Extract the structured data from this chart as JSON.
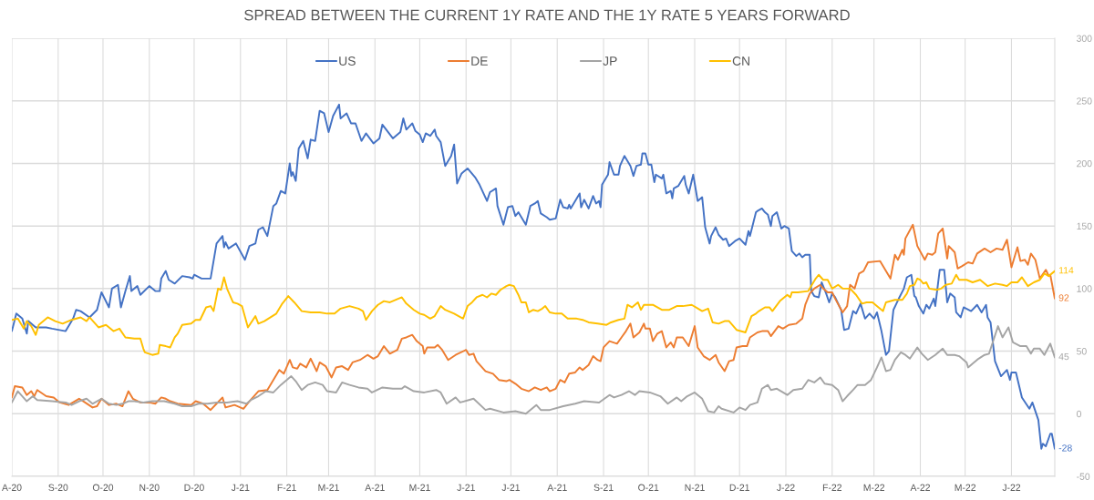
{
  "chart_data": {
    "type": "line",
    "title": "SPREAD BETWEEN THE CURRENT 1Y RATE AND THE 1Y RATE 5 YEARS FORWARD",
    "series": [
      {
        "name": "US",
        "color": "#4472c4",
        "x": [
          "2020-08-01",
          "2020-08-04",
          "2020-08-08",
          "2020-08-11",
          "2020-08-12",
          "2020-08-17",
          "2020-08-24",
          "2020-08-28",
          "2020-09-06",
          "2020-09-11",
          "2020-09-13",
          "2020-09-16",
          "2020-09-22",
          "2020-09-27",
          "2020-09-30",
          "2020-10-05",
          "2020-10-07",
          "2020-10-11",
          "2020-10-13",
          "2020-10-16",
          "2020-10-19",
          "2020-10-20",
          "2020-10-24",
          "2020-10-26",
          "2020-11-01",
          "2020-11-05",
          "2020-11-08",
          "2020-11-09",
          "2020-11-12",
          "2020-11-14",
          "2020-11-18",
          "2020-11-23",
          "2020-11-28",
          "2020-11-30",
          "2020-12-01",
          "2020-12-06",
          "2020-12-12",
          "2020-12-16",
          "2020-12-20",
          "2020-12-21",
          "2020-12-22",
          "2020-12-24",
          "2020-12-29",
          "2021-01-04",
          "2021-01-07",
          "2021-01-11",
          "2021-01-13",
          "2021-01-16",
          "2021-01-19",
          "2021-01-23",
          "2021-01-25",
          "2021-01-28",
          "2021-01-31",
          "2021-02-03",
          "2021-02-04",
          "2021-02-05",
          "2021-02-07",
          "2021-02-09",
          "2021-02-12",
          "2021-02-15",
          "2021-02-17",
          "2021-02-20",
          "2021-02-23",
          "2021-02-26",
          "2021-03-01",
          "2021-03-04",
          "2021-03-08",
          "2021-03-09",
          "2021-03-13",
          "2021-03-16",
          "2021-03-19",
          "2021-03-23",
          "2021-03-26",
          "2021-03-31",
          "2021-04-04",
          "2021-04-06",
          "2021-04-13",
          "2021-04-18",
          "2021-04-20",
          "2021-04-22",
          "2021-04-26",
          "2021-04-28",
          "2021-05-01",
          "2021-05-03",
          "2021-05-05",
          "2021-05-08",
          "2021-05-11",
          "2021-05-12",
          "2021-05-15",
          "2021-05-18",
          "2021-05-22",
          "2021-05-24",
          "2021-05-26",
          "2021-05-29",
          "2021-06-02",
          "2021-06-07",
          "2021-06-10",
          "2021-06-15",
          "2021-06-17",
          "2021-06-21",
          "2021-06-22",
          "2021-06-26",
          "2021-06-29",
          "2021-07-02",
          "2021-07-04",
          "2021-07-06",
          "2021-07-11",
          "2021-07-14",
          "2021-07-17",
          "2021-07-19",
          "2021-07-21",
          "2021-07-25",
          "2021-07-27",
          "2021-07-31",
          "2021-08-03",
          "2021-08-05",
          "2021-08-08",
          "2021-08-09",
          "2021-08-10",
          "2021-08-12",
          "2021-08-16",
          "2021-08-17",
          "2021-08-19",
          "2021-08-22",
          "2021-08-25",
          "2021-08-27",
          "2021-08-29",
          "2021-08-30",
          "2021-08-31",
          "2021-09-04",
          "2021-09-05",
          "2021-09-08",
          "2021-09-11",
          "2021-09-12",
          "2021-09-15",
          "2021-09-19",
          "2021-09-21",
          "2021-09-23",
          "2021-09-26",
          "2021-09-27",
          "2021-09-29",
          "2021-10-01",
          "2021-10-03",
          "2021-10-05",
          "2021-10-06",
          "2021-10-10",
          "2021-10-11",
          "2021-10-13",
          "2021-10-16",
          "2021-10-17",
          "2021-10-18",
          "2021-10-21",
          "2021-10-25",
          "2021-10-26",
          "2021-10-28",
          "2021-10-31",
          "2021-11-03",
          "2021-11-06",
          "2021-11-08",
          "2021-11-11",
          "2021-11-12",
          "2021-11-15",
          "2021-11-17",
          "2021-11-20",
          "2021-11-22",
          "2021-11-24",
          "2021-11-28",
          "2021-12-01",
          "2021-12-05",
          "2021-12-07",
          "2021-12-08",
          "2021-12-12",
          "2021-12-13",
          "2021-12-16",
          "2021-12-18",
          "2021-12-20",
          "2021-12-22",
          "2021-12-23",
          "2021-12-26",
          "2021-12-29",
          "2021-12-31",
          "2022-01-03",
          "2022-01-05",
          "2022-01-08",
          "2022-01-10",
          "2022-01-12",
          "2022-01-14",
          "2022-01-17",
          "2022-01-18",
          "2022-01-20",
          "2022-01-23",
          "2022-01-25",
          "2022-01-28",
          "2022-01-30",
          "2022-02-01",
          "2022-02-03",
          "2022-02-07",
          "2022-02-09",
          "2022-02-12",
          "2022-02-15",
          "2022-02-17",
          "2022-02-20",
          "2022-02-23",
          "2022-02-26",
          "2022-03-01",
          "2022-03-03",
          "2022-03-06",
          "2022-03-09",
          "2022-03-11",
          "2022-03-14",
          "2022-03-16",
          "2022-03-18",
          "2022-03-21",
          "2022-03-23",
          "2022-03-26",
          "2022-03-28",
          "2022-03-29",
          "2022-03-31",
          "2022-04-03",
          "2022-04-05",
          "2022-04-07",
          "2022-04-10",
          "2022-04-11",
          "2022-04-14",
          "2022-04-17",
          "2022-04-19",
          "2022-04-21",
          "2022-04-24",
          "2022-04-25",
          "2022-04-28",
          "2022-04-30",
          "2022-05-05",
          "2022-05-09",
          "2022-05-12",
          "2022-05-15",
          "2022-05-16",
          "2022-05-18",
          "2022-05-21",
          "2022-05-25",
          "2022-05-29",
          "2022-05-31",
          "2022-06-01",
          "2022-06-04",
          "2022-06-08",
          "2022-06-13",
          "2022-06-15",
          "2022-06-19",
          "2022-06-21",
          "2022-06-22",
          "2022-06-24",
          "2022-06-27",
          "2022-06-28",
          "2022-06-30"
        ],
        "values": [
          66,
          80,
          76,
          64,
          74,
          69,
          69,
          68,
          66,
          76,
          83,
          82,
          77,
          83,
          97,
          85,
          100,
          103,
          85,
          98,
          110,
          98,
          102,
          95,
          102,
          98,
          98,
          108,
          114,
          107,
          104,
          110,
          109,
          108,
          111,
          108,
          108,
          136,
          142,
          133,
          137,
          132,
          136,
          123,
          134,
          136,
          147,
          149,
          142,
          166,
          168,
          178,
          176,
          200,
          190,
          193,
          186,
          212,
          218,
          204,
          219,
          218,
          242,
          240,
          225,
          238,
          247,
          236,
          240,
          232,
          232,
          218,
          224,
          216,
          220,
          231,
          220,
          225,
          236,
          227,
          232,
          226,
          223,
          217,
          224,
          222,
          227,
          222,
          217,
          198,
          206,
          215,
          184,
          192,
          196,
          189,
          183,
          170,
          177,
          180,
          166,
          151,
          165,
          166,
          158,
          161,
          151,
          166,
          168,
          170,
          160,
          157,
          155,
          156,
          171,
          165,
          164,
          167,
          164,
          168,
          176,
          165,
          171,
          164,
          174,
          168,
          170,
          165,
          183,
          191,
          201,
          191,
          191,
          198,
          206,
          198,
          190,
          198,
          199,
          208,
          208,
          199,
          199,
          185,
          191,
          188,
          191,
          176,
          178,
          172,
          180,
          182,
          190,
          183,
          176,
          191,
          170,
          173,
          149,
          136,
          142,
          149,
          143,
          139,
          140,
          134,
          138,
          140,
          135,
          146,
          142,
          161,
          162,
          164,
          161,
          159,
          150,
          158,
          161,
          148,
          150,
          148,
          130,
          126,
          128,
          125,
          127,
          127,
          98,
          94,
          93,
          105,
          96,
          89,
          96,
          93,
          83,
          67,
          68,
          82,
          80,
          88,
          76,
          80,
          76,
          81,
          66,
          47,
          50,
          83,
          88,
          93,
          100,
          109,
          111,
          94,
          93,
          86,
          80,
          87,
          84,
          92,
          86,
          115,
          115,
          89,
          96,
          93,
          81,
          77,
          85,
          82,
          87,
          81,
          87,
          77,
          73,
          42,
          30,
          35,
          27,
          33,
          33,
          13,
          4,
          9,
          -5,
          -28,
          -24,
          -26,
          -16,
          -16,
          -28
        ]
      },
      {
        "name": "DE",
        "color": "#ed7d31",
        "x": [
          "2020-08-01",
          "2020-08-03",
          "2020-08-08",
          "2020-08-11",
          "2020-08-14",
          "2020-08-16",
          "2020-08-18",
          "2020-08-24",
          "2020-08-29",
          "2020-09-02",
          "2020-09-08",
          "2020-09-15",
          "2020-09-19",
          "2020-09-24",
          "2020-09-27",
          "2020-09-30",
          "2020-10-05",
          "2020-10-10",
          "2020-10-14",
          "2020-10-18",
          "2020-10-21",
          "2020-10-26",
          "2020-11-01",
          "2020-11-05",
          "2020-11-09",
          "2020-11-12",
          "2020-11-15",
          "2020-11-20",
          "2020-11-29",
          "2020-12-02",
          "2020-12-07",
          "2020-12-12",
          "2020-12-16",
          "2020-12-20",
          "2020-12-22",
          "2020-12-28",
          "2021-01-03",
          "2021-01-07",
          "2021-01-13",
          "2021-01-19",
          "2021-01-23",
          "2021-01-27",
          "2021-01-30",
          "2021-02-03",
          "2021-02-05",
          "2021-02-08",
          "2021-02-10",
          "2021-02-14",
          "2021-02-17",
          "2021-02-21",
          "2021-02-23",
          "2021-02-27",
          "2021-03-03",
          "2021-03-06",
          "2021-03-10",
          "2021-03-14",
          "2021-03-17",
          "2021-03-22",
          "2021-03-27",
          "2021-03-31",
          "2021-04-03",
          "2021-04-07",
          "2021-04-11",
          "2021-04-16",
          "2021-04-19",
          "2021-04-22",
          "2021-04-26",
          "2021-04-29",
          "2021-05-03",
          "2021-05-04",
          "2021-05-06",
          "2021-05-11",
          "2021-05-13",
          "2021-05-16",
          "2021-05-20",
          "2021-05-25",
          "2021-06-01",
          "2021-06-03",
          "2021-06-06",
          "2021-06-08",
          "2021-06-14",
          "2021-06-19",
          "2021-06-23",
          "2021-06-28",
          "2021-06-30",
          "2021-07-04",
          "2021-07-08",
          "2021-07-13",
          "2021-07-17",
          "2021-07-21",
          "2021-07-25",
          "2021-07-27",
          "2021-07-31",
          "2021-08-03",
          "2021-08-06",
          "2021-08-09",
          "2021-08-13",
          "2021-08-16",
          "2021-08-18",
          "2021-08-22",
          "2021-08-25",
          "2021-08-28",
          "2021-08-30",
          "2021-09-01",
          "2021-09-05",
          "2021-09-10",
          "2021-09-13",
          "2021-09-16",
          "2021-09-19",
          "2021-09-21",
          "2021-09-25",
          "2021-09-28",
          "2021-09-29",
          "2021-10-02",
          "2021-10-04",
          "2021-10-07",
          "2021-10-10",
          "2021-10-13",
          "2021-10-16",
          "2021-10-18",
          "2021-10-20",
          "2021-10-24",
          "2021-10-28",
          "2021-11-01",
          "2021-11-03",
          "2021-11-07",
          "2021-11-11",
          "2021-11-15",
          "2021-11-17",
          "2021-11-21",
          "2021-11-24",
          "2021-11-27",
          "2021-11-29",
          "2021-12-03",
          "2021-12-06",
          "2021-12-08",
          "2021-12-13",
          "2021-12-16",
          "2021-12-20",
          "2021-12-22",
          "2021-12-27",
          "2021-12-30",
          "2022-01-03",
          "2022-01-08",
          "2022-01-12",
          "2022-01-14",
          "2022-01-17",
          "2022-01-20",
          "2022-01-24",
          "2022-01-26",
          "2022-01-29",
          "2022-02-01",
          "2022-02-03",
          "2022-02-08",
          "2022-02-11",
          "2022-02-13",
          "2022-02-16",
          "2022-02-19",
          "2022-02-22",
          "2022-02-25",
          "2022-03-05",
          "2022-03-09",
          "2022-03-12",
          "2022-03-15",
          "2022-03-17",
          "2022-03-20",
          "2022-03-21",
          "2022-03-22",
          "2022-03-27",
          "2022-03-30",
          "2022-04-04",
          "2022-04-06",
          "2022-04-09",
          "2022-04-11",
          "2022-04-13",
          "2022-04-16",
          "2022-04-19",
          "2022-04-20",
          "2022-04-24",
          "2022-04-26",
          "2022-04-29",
          "2022-05-03",
          "2022-05-06",
          "2022-05-09",
          "2022-05-14",
          "2022-05-18",
          "2022-05-22",
          "2022-05-26",
          "2022-05-29",
          "2022-06-01",
          "2022-06-05",
          "2022-06-07",
          "2022-06-10",
          "2022-06-12",
          "2022-06-14",
          "2022-06-17",
          "2022-06-20",
          "2022-06-24",
          "2022-06-26",
          "2022-06-27",
          "2022-06-30"
        ],
        "values": [
          13,
          22,
          21,
          15,
          18,
          14,
          19,
          14,
          13,
          9,
          7,
          12,
          9,
          5,
          6,
          12,
          7,
          8,
          6,
          18,
          12,
          9,
          9,
          8,
          13,
          12,
          10,
          8,
          7,
          10,
          8,
          3,
          8,
          13,
          5,
          7,
          4,
          10,
          18,
          19,
          27,
          35,
          32,
          43,
          37,
          36,
          40,
          37,
          44,
          34,
          41,
          38,
          29,
          37,
          38,
          35,
          41,
          43,
          47,
          44,
          46,
          54,
          48,
          51,
          60,
          61,
          63,
          58,
          54,
          48,
          53,
          53,
          55,
          51,
          43,
          47,
          51,
          47,
          48,
          42,
          34,
          32,
          27,
          26,
          27,
          24,
          20,
          18,
          21,
          19,
          21,
          18,
          20,
          27,
          25,
          32,
          33,
          37,
          35,
          39,
          46,
          43,
          42,
          53,
          58,
          56,
          61,
          66,
          72,
          61,
          65,
          72,
          68,
          68,
          58,
          64,
          66,
          53,
          57,
          53,
          61,
          61,
          54,
          70,
          53,
          46,
          43,
          47,
          41,
          34,
          42,
          43,
          53,
          54,
          54,
          61,
          65,
          66,
          66,
          62,
          70,
          68,
          71,
          72,
          76,
          87,
          96,
          100,
          103,
          100,
          97,
          97,
          92,
          81,
          86,
          103,
          100,
          112,
          114,
          121,
          122,
          114,
          108,
          127,
          123,
          131,
          127,
          140,
          151,
          134,
          123,
          128,
          127,
          129,
          144,
          148,
          124,
          134,
          129,
          116,
          118,
          121,
          120,
          128,
          132,
          129,
          132,
          131,
          139,
          117,
          133,
          122,
          123,
          119,
          128,
          123,
          108,
          115,
          110,
          111,
          92
        ]
      },
      {
        "name": "JP",
        "color": "#a5a5a5",
        "x": [
          "2020-08-01",
          "2020-08-05",
          "2020-08-11",
          "2020-08-15",
          "2020-08-18",
          "2020-08-28",
          "2020-09-06",
          "2020-09-10",
          "2020-09-15",
          "2020-09-20",
          "2020-09-24",
          "2020-09-30",
          "2020-10-05",
          "2020-10-10",
          "2020-10-14",
          "2020-10-18",
          "2020-10-22",
          "2020-10-28",
          "2020-11-03",
          "2020-11-11",
          "2020-11-18",
          "2020-11-23",
          "2020-11-29",
          "2020-12-04",
          "2020-12-10",
          "2020-12-16",
          "2020-12-23",
          "2020-12-30",
          "2021-01-05",
          "2021-01-08",
          "2021-01-13",
          "2021-01-18",
          "2021-01-23",
          "2021-01-28",
          "2021-02-04",
          "2021-02-07",
          "2021-02-11",
          "2021-02-15",
          "2021-02-20",
          "2021-02-25",
          "2021-02-28",
          "2021-03-06",
          "2021-03-10",
          "2021-03-15",
          "2021-03-21",
          "2021-03-27",
          "2021-03-30",
          "2021-04-06",
          "2021-04-13",
          "2021-04-19",
          "2021-04-21",
          "2021-04-27",
          "2021-05-04",
          "2021-05-12",
          "2021-05-15",
          "2021-05-19",
          "2021-05-25",
          "2021-05-28",
          "2021-06-06",
          "2021-06-14",
          "2021-06-17",
          "2021-06-26",
          "2021-07-04",
          "2021-07-11",
          "2021-07-18",
          "2021-07-21",
          "2021-07-27",
          "2021-08-05",
          "2021-08-13",
          "2021-08-19",
          "2021-08-29",
          "2021-09-05",
          "2021-09-08",
          "2021-09-13",
          "2021-09-18",
          "2021-09-22",
          "2021-09-25",
          "2021-10-02",
          "2021-10-09",
          "2021-10-14",
          "2021-10-20",
          "2021-10-23",
          "2021-10-27",
          "2021-11-01",
          "2021-11-06",
          "2021-11-10",
          "2021-11-14",
          "2021-11-17",
          "2021-11-19",
          "2021-11-27",
          "2021-12-01",
          "2021-12-05",
          "2021-12-08",
          "2021-12-13",
          "2021-12-16",
          "2021-12-20",
          "2021-12-22",
          "2021-12-26",
          "2022-01-02",
          "2022-01-06",
          "2022-01-12",
          "2022-01-16",
          "2022-01-20",
          "2022-01-24",
          "2022-01-27",
          "2022-02-01",
          "2022-02-05",
          "2022-02-08",
          "2022-02-11",
          "2022-02-15",
          "2022-02-18",
          "2022-02-23",
          "2022-02-27",
          "2022-03-03",
          "2022-03-06",
          "2022-03-09",
          "2022-03-12",
          "2022-03-15",
          "2022-03-19",
          "2022-03-22",
          "2022-03-25",
          "2022-03-30",
          "2022-04-02",
          "2022-04-06",
          "2022-04-11",
          "2022-04-16",
          "2022-04-19",
          "2022-04-24",
          "2022-04-27",
          "2022-05-02",
          "2022-05-03",
          "2022-05-06",
          "2022-05-10",
          "2022-05-14",
          "2022-05-17",
          "2022-05-20",
          "2022-05-23",
          "2022-05-26",
          "2022-05-30",
          "2022-06-02",
          "2022-06-07",
          "2022-06-11",
          "2022-06-14",
          "2022-06-16",
          "2022-06-20",
          "2022-06-23",
          "2022-06-27",
          "2022-06-30"
        ],
        "values": [
          9,
          18,
          10,
          14,
          11,
          10,
          9,
          7,
          10,
          12,
          8,
          12,
          8,
          7,
          8,
          10,
          10,
          9,
          10,
          10,
          8,
          6,
          6,
          8,
          8,
          9,
          9,
          10,
          8,
          11,
          14,
          18,
          17,
          23,
          30,
          26,
          19,
          23,
          25,
          23,
          18,
          17,
          25,
          23,
          21,
          20,
          17,
          21,
          20,
          20,
          22,
          18,
          17,
          19,
          17,
          8,
          13,
          9,
          12,
          3,
          4,
          1,
          2,
          0,
          7,
          3,
          3,
          6,
          8,
          10,
          9,
          15,
          13,
          15,
          18,
          15,
          18,
          17,
          14,
          8,
          13,
          10,
          14,
          17,
          12,
          2,
          1,
          6,
          4,
          1,
          5,
          3,
          7,
          9,
          20,
          23,
          19,
          20,
          15,
          19,
          20,
          27,
          25,
          29,
          24,
          23,
          19,
          10,
          14,
          19,
          23,
          23,
          27,
          37,
          45,
          34,
          35,
          43,
          49,
          47,
          44,
          53,
          48,
          43,
          47,
          52,
          47,
          47,
          46,
          41,
          37,
          40,
          44,
          47,
          48,
          59,
          70,
          61,
          69,
          57,
          54,
          54,
          48,
          52,
          52,
          47,
          56,
          45
        ]
      },
      {
        "name": "CN",
        "color": "#ffc000",
        "x": [
          "2020-08-01",
          "2020-08-05",
          "2020-08-09",
          "2020-08-11",
          "2020-08-14",
          "2020-08-17",
          "2020-08-19",
          "2020-08-25",
          "2020-08-30",
          "2020-09-04",
          "2020-09-10",
          "2020-09-16",
          "2020-09-20",
          "2020-09-22",
          "2020-09-28",
          "2020-10-03",
          "2020-10-08",
          "2020-10-12",
          "2020-10-16",
          "2020-10-22",
          "2020-10-26",
          "2020-10-28",
          "2020-10-29",
          "2020-11-03",
          "2020-11-07",
          "2020-11-08",
          "2020-11-12",
          "2020-11-15",
          "2020-11-18",
          "2020-11-20",
          "2020-11-23",
          "2020-11-29",
          "2020-12-02",
          "2020-12-05",
          "2020-12-09",
          "2020-12-12",
          "2020-12-14",
          "2020-12-17",
          "2020-12-19",
          "2020-12-21",
          "2020-12-23",
          "2020-12-27",
          "2020-12-30",
          "2021-01-02",
          "2021-01-06",
          "2021-01-11",
          "2021-01-13",
          "2021-01-17",
          "2021-01-25",
          "2021-01-29",
          "2021-02-02",
          "2021-02-06",
          "2021-02-11",
          "2021-02-17",
          "2021-02-23",
          "2021-02-28",
          "2021-03-05",
          "2021-03-09",
          "2021-03-15",
          "2021-03-21",
          "2021-03-24",
          "2021-03-26",
          "2021-03-30",
          "2021-04-03",
          "2021-04-07",
          "2021-04-11",
          "2021-04-15",
          "2021-04-19",
          "2021-04-22",
          "2021-04-27",
          "2021-05-01",
          "2021-05-04",
          "2021-05-08",
          "2021-05-11",
          "2021-05-15",
          "2021-05-18",
          "2021-05-24",
          "2021-05-30",
          "2021-06-02",
          "2021-06-05",
          "2021-06-08",
          "2021-06-12",
          "2021-06-15",
          "2021-06-18",
          "2021-06-21",
          "2021-06-24",
          "2021-06-28",
          "2021-06-30",
          "2021-07-03",
          "2021-07-06",
          "2021-07-08",
          "2021-07-11",
          "2021-07-13",
          "2021-07-16",
          "2021-07-19",
          "2021-07-22",
          "2021-07-24",
          "2021-07-27",
          "2021-07-31",
          "2021-08-04",
          "2021-08-08",
          "2021-08-14",
          "2021-08-18",
          "2021-08-22",
          "2021-08-28",
          "2021-09-03",
          "2021-09-06",
          "2021-09-11",
          "2021-09-15",
          "2021-09-17",
          "2021-09-20",
          "2021-09-24",
          "2021-09-26",
          "2021-09-28",
          "2021-10-04",
          "2021-10-10",
          "2021-10-15",
          "2021-10-20",
          "2021-10-24",
          "2021-10-30",
          "2021-11-06",
          "2021-11-10",
          "2021-11-13",
          "2021-11-17",
          "2021-11-21",
          "2021-11-24",
          "2021-11-29",
          "2021-12-05",
          "2021-12-09",
          "2021-12-12",
          "2021-12-14",
          "2021-12-18",
          "2021-12-21",
          "2021-12-23",
          "2021-12-28",
          "2022-01-02",
          "2022-01-04",
          "2022-01-05",
          "2022-01-09",
          "2022-01-16",
          "2022-01-21",
          "2022-01-23",
          "2022-01-26",
          "2022-01-29",
          "2022-02-01",
          "2022-02-05",
          "2022-02-08",
          "2022-02-13",
          "2022-02-17",
          "2022-02-21",
          "2022-02-24",
          "2022-02-28",
          "2022-03-04",
          "2022-03-07",
          "2022-03-09",
          "2022-03-15",
          "2022-03-20",
          "2022-03-23",
          "2022-03-25",
          "2022-03-28",
          "2022-03-30",
          "2022-04-01",
          "2022-04-03",
          "2022-04-05",
          "2022-04-07",
          "2022-04-12",
          "2022-04-15",
          "2022-04-18",
          "2022-04-22",
          "2022-04-25",
          "2022-04-27",
          "2022-05-02",
          "2022-05-06",
          "2022-05-11",
          "2022-05-16",
          "2022-05-21",
          "2022-05-26",
          "2022-05-29",
          "2022-06-01",
          "2022-06-05",
          "2022-06-08",
          "2022-06-12",
          "2022-06-16",
          "2022-06-20",
          "2022-06-23",
          "2022-06-26",
          "2022-06-30"
        ],
        "values": [
          75,
          76,
          68,
          74,
          70,
          63,
          71,
          77,
          74,
          72,
          75,
          77,
          74,
          77,
          69,
          71,
          66,
          68,
          61,
          60,
          60,
          52,
          49,
          47,
          48,
          55,
          54,
          53,
          61,
          64,
          71,
          72,
          75,
          75,
          85,
          86,
          82,
          100,
          99,
          109,
          100,
          89,
          88,
          86,
          69,
          78,
          72,
          74,
          80,
          88,
          94,
          89,
          82,
          81,
          81,
          80,
          80,
          84,
          86,
          84,
          82,
          75,
          82,
          87,
          90,
          89,
          91,
          93,
          88,
          83,
          80,
          79,
          76,
          78,
          86,
          83,
          80,
          76,
          86,
          89,
          93,
          95,
          93,
          96,
          95,
          99,
          102,
          103,
          102,
          95,
          89,
          89,
          81,
          83,
          82,
          84,
          86,
          81,
          80,
          80,
          76,
          76,
          75,
          73,
          72,
          71,
          73,
          75,
          76,
          87,
          85,
          89,
          83,
          87,
          87,
          83,
          83,
          86,
          86,
          87,
          82,
          84,
          73,
          72,
          74,
          74,
          67,
          65,
          78,
          80,
          82,
          85,
          85,
          82,
          90,
          95,
          93,
          97,
          97,
          98,
          108,
          111,
          107,
          107,
          100,
          103,
          100,
          100,
          95,
          88,
          89,
          89,
          85,
          82,
          89,
          91,
          91,
          96,
          102,
          103,
          108,
          107,
          104,
          105,
          100,
          99,
          100,
          103,
          104,
          111,
          107,
          107,
          105,
          107,
          102,
          104,
          103,
          102,
          105,
          105,
          109,
          102,
          105,
          107,
          112,
          110,
          114
        ]
      }
    ],
    "xlim": [
      "2020-08-01",
      "2022-06-30"
    ],
    "xticks": [
      {
        "value": "2020-08-01",
        "label": "A-20"
      },
      {
        "value": "2020-09-01",
        "label": "S-20"
      },
      {
        "value": "2020-10-01",
        "label": "O-20"
      },
      {
        "value": "2020-11-01",
        "label": "N-20"
      },
      {
        "value": "2020-12-01",
        "label": "D-20"
      },
      {
        "value": "2021-01-01",
        "label": "J-21"
      },
      {
        "value": "2021-02-01",
        "label": "F-21"
      },
      {
        "value": "2021-03-01",
        "label": "M-21"
      },
      {
        "value": "2021-04-01",
        "label": "A-21"
      },
      {
        "value": "2021-05-01",
        "label": "M-21"
      },
      {
        "value": "2021-06-01",
        "label": "J-21"
      },
      {
        "value": "2021-07-01",
        "label": "J-21"
      },
      {
        "value": "2021-08-01",
        "label": "A-21"
      },
      {
        "value": "2021-09-01",
        "label": "S-21"
      },
      {
        "value": "2021-10-01",
        "label": "O-21"
      },
      {
        "value": "2021-11-01",
        "label": "N-21"
      },
      {
        "value": "2021-12-01",
        "label": "D-21"
      },
      {
        "value": "2022-01-01",
        "label": "J-22"
      },
      {
        "value": "2022-02-01",
        "label": "F-22"
      },
      {
        "value": "2022-03-01",
        "label": "M-22"
      },
      {
        "value": "2022-04-01",
        "label": "A-22"
      },
      {
        "value": "2022-05-01",
        "label": "M-22"
      },
      {
        "value": "2022-06-01",
        "label": "J-22"
      }
    ],
    "ylim": [
      -50,
      300
    ],
    "yticks": [
      -50,
      0,
      50,
      100,
      150,
      200,
      250,
      300
    ],
    "grid": true,
    "legend": "top",
    "annotations": [
      {
        "text": "114",
        "x": "2022-06-30",
        "y": 114
      },
      {
        "text": "92",
        "x": "2022-06-30",
        "y": 92
      },
      {
        "text": "45",
        "x": "2022-06-30",
        "y": 45
      },
      {
        "text": "-28",
        "x": "2022-06-30",
        "y": -28
      }
    ]
  }
}
